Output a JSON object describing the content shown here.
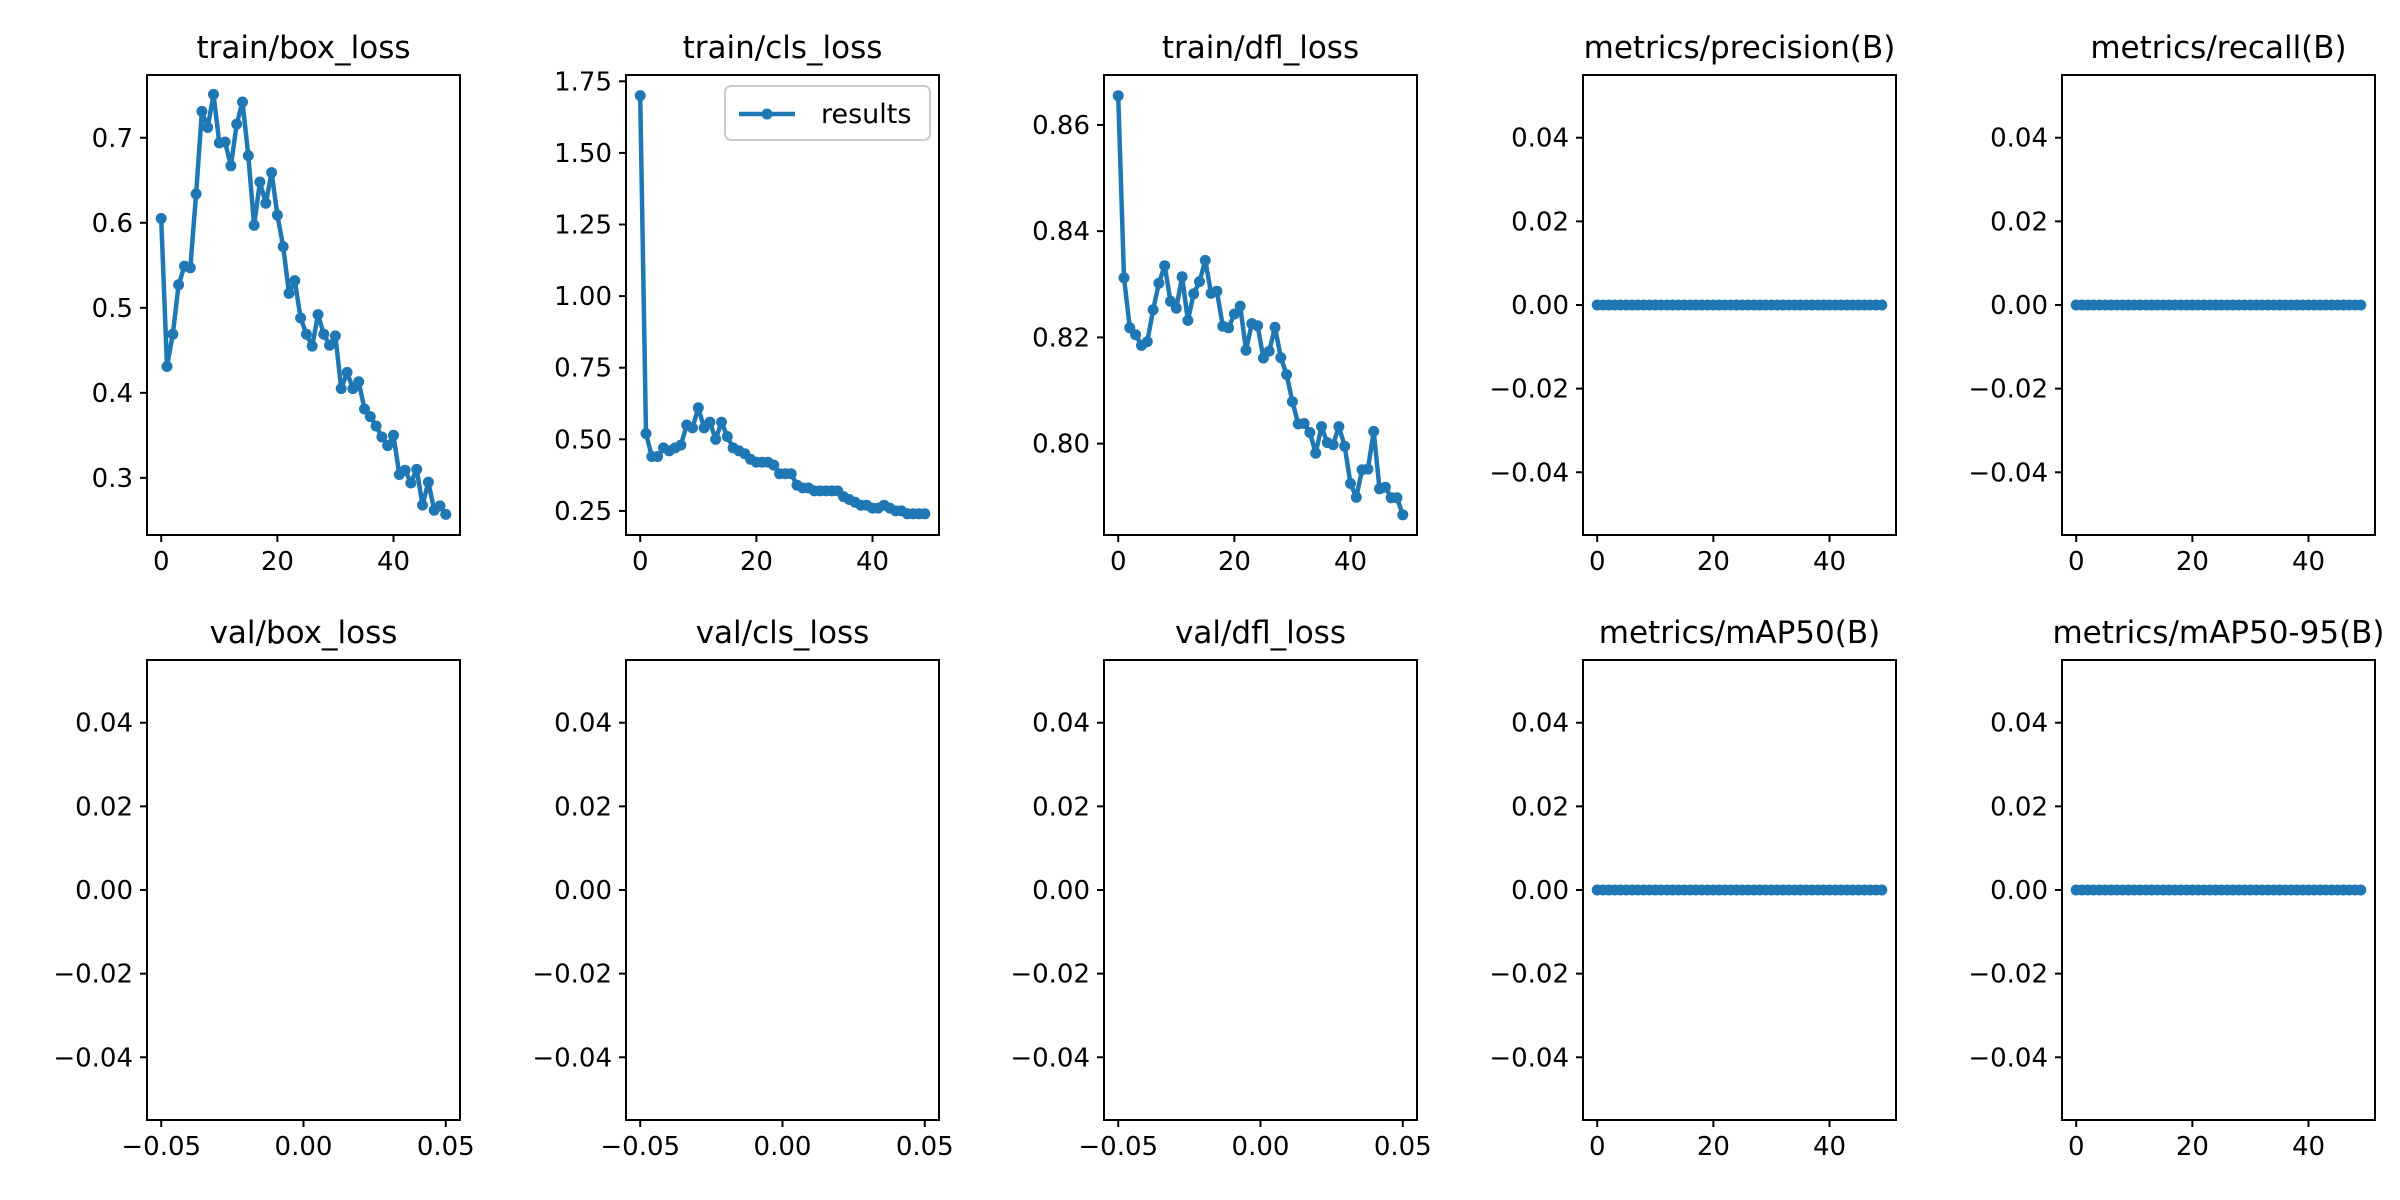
{
  "chart_data": [
    {
      "type": "line",
      "title": "train/box_loss",
      "xlabel": "",
      "ylabel": "",
      "xlim": [
        -2.45,
        51.45
      ],
      "ylim": [
        0.2328,
        0.7738
      ],
      "xticks": [
        0,
        20,
        40
      ],
      "xtick_labels": [
        "0",
        "20",
        "40"
      ],
      "yticks": [
        0.3,
        0.4,
        0.5,
        0.6,
        0.7
      ],
      "ytick_labels": [
        "0.3",
        "0.4",
        "0.5",
        "0.6",
        "0.7"
      ],
      "grid": false,
      "series": [
        {
          "color": "#1f77b4",
          "x": [
            0,
            1,
            2,
            3,
            4,
            5,
            6,
            7,
            8,
            9,
            10,
            11,
            12,
            13,
            14,
            15,
            16,
            17,
            18,
            19,
            20,
            21,
            22,
            23,
            24,
            25,
            26,
            27,
            28,
            29,
            30,
            31,
            32,
            33,
            34,
            35,
            36,
            37,
            38,
            39,
            40,
            41,
            42,
            43,
            44,
            45,
            46,
            47,
            48,
            49
          ],
          "y": [
            0.605,
            0.431,
            0.469,
            0.527,
            0.549,
            0.547,
            0.634,
            0.731,
            0.712,
            0.751,
            0.694,
            0.695,
            0.667,
            0.716,
            0.742,
            0.679,
            0.597,
            0.648,
            0.623,
            0.659,
            0.609,
            0.572,
            0.517,
            0.532,
            0.488,
            0.469,
            0.455,
            0.492,
            0.469,
            0.456,
            0.467,
            0.405,
            0.424,
            0.405,
            0.413,
            0.381,
            0.372,
            0.361,
            0.348,
            0.338,
            0.35,
            0.304,
            0.309,
            0.294,
            0.31,
            0.268,
            0.295,
            0.262,
            0.267,
            0.257
          ]
        }
      ]
    },
    {
      "type": "line",
      "title": "train/cls_loss",
      "xlabel": "",
      "ylabel": "",
      "xlim": [
        -2.45,
        51.45
      ],
      "ylim": [
        0.166,
        1.772
      ],
      "xticks": [
        0,
        20,
        40
      ],
      "xtick_labels": [
        "0",
        "20",
        "40"
      ],
      "yticks": [
        0.25,
        0.5,
        0.75,
        1.0,
        1.25,
        1.5,
        1.75
      ],
      "ytick_labels": [
        "0.25",
        "0.50",
        "0.75",
        "1.00",
        "1.25",
        "1.50",
        "1.75"
      ],
      "grid": false,
      "legend": {
        "position": "upper-right",
        "entries": [
          "results"
        ]
      },
      "series": [
        {
          "name": "results",
          "color": "#1f77b4",
          "x": [
            0,
            1,
            2,
            3,
            4,
            5,
            6,
            7,
            8,
            9,
            10,
            11,
            12,
            13,
            14,
            15,
            16,
            17,
            18,
            19,
            20,
            21,
            22,
            23,
            24,
            25,
            26,
            27,
            28,
            29,
            30,
            31,
            32,
            33,
            34,
            35,
            36,
            37,
            38,
            39,
            40,
            41,
            42,
            43,
            44,
            45,
            46,
            47,
            48,
            49
          ],
          "y": [
            1.7,
            0.52,
            0.44,
            0.44,
            0.47,
            0.46,
            0.47,
            0.48,
            0.55,
            0.54,
            0.61,
            0.54,
            0.56,
            0.5,
            0.56,
            0.51,
            0.47,
            0.46,
            0.45,
            0.43,
            0.42,
            0.42,
            0.42,
            0.41,
            0.38,
            0.38,
            0.38,
            0.34,
            0.33,
            0.33,
            0.32,
            0.32,
            0.32,
            0.32,
            0.32,
            0.3,
            0.29,
            0.28,
            0.27,
            0.27,
            0.26,
            0.26,
            0.27,
            0.26,
            0.25,
            0.25,
            0.24,
            0.24,
            0.24,
            0.24
          ]
        }
      ]
    },
    {
      "type": "line",
      "title": "train/dfl_loss",
      "xlabel": "",
      "ylabel": "",
      "xlim": [
        -2.45,
        51.45
      ],
      "ylim": [
        0.7828,
        0.8694
      ],
      "xticks": [
        0,
        20,
        40
      ],
      "xtick_labels": [
        "0",
        "20",
        "40"
      ],
      "yticks": [
        0.8,
        0.82,
        0.84,
        0.86
      ],
      "ytick_labels": [
        "0.80",
        "0.82",
        "0.84",
        "0.86"
      ],
      "grid": false,
      "series": [
        {
          "color": "#1f77b4",
          "x": [
            0,
            1,
            2,
            3,
            4,
            5,
            6,
            7,
            8,
            9,
            10,
            11,
            12,
            13,
            14,
            15,
            16,
            17,
            18,
            19,
            20,
            21,
            22,
            23,
            24,
            25,
            26,
            27,
            28,
            29,
            30,
            31,
            32,
            33,
            34,
            35,
            36,
            37,
            38,
            39,
            40,
            41,
            42,
            43,
            44,
            45,
            46,
            47,
            48,
            49
          ],
          "y": [
            0.8655,
            0.8312,
            0.8218,
            0.8205,
            0.8185,
            0.8192,
            0.8252,
            0.8302,
            0.8335,
            0.8268,
            0.8255,
            0.8314,
            0.8232,
            0.8282,
            0.8305,
            0.8345,
            0.8283,
            0.8287,
            0.8221,
            0.8218,
            0.8244,
            0.8259,
            0.8176,
            0.8226,
            0.8222,
            0.8161,
            0.8174,
            0.8219,
            0.8162,
            0.813,
            0.8079,
            0.8037,
            0.8038,
            0.8021,
            0.7982,
            0.8032,
            0.8002,
            0.7998,
            0.8032,
            0.7995,
            0.7925,
            0.7899,
            0.7951,
            0.7952,
            0.8023,
            0.7915,
            0.7918,
            0.7898,
            0.7898,
            0.7866
          ]
        }
      ]
    },
    {
      "type": "line",
      "title": "metrics/precision(B)",
      "xlabel": "",
      "ylabel": "",
      "xlim": [
        -2.45,
        51.45
      ],
      "ylim": [
        -0.055,
        0.055
      ],
      "xticks": [
        0,
        20,
        40
      ],
      "xtick_labels": [
        "0",
        "20",
        "40"
      ],
      "yticks": [
        -0.04,
        -0.02,
        0.0,
        0.02,
        0.04
      ],
      "ytick_labels": [
        "−0.04",
        "−0.02",
        "0.00",
        "0.02",
        "0.04"
      ],
      "grid": false,
      "series": [
        {
          "color": "#1f77b4",
          "x": [
            0,
            1,
            2,
            3,
            4,
            5,
            6,
            7,
            8,
            9,
            10,
            11,
            12,
            13,
            14,
            15,
            16,
            17,
            18,
            19,
            20,
            21,
            22,
            23,
            24,
            25,
            26,
            27,
            28,
            29,
            30,
            31,
            32,
            33,
            34,
            35,
            36,
            37,
            38,
            39,
            40,
            41,
            42,
            43,
            44,
            45,
            46,
            47,
            48,
            49
          ],
          "y": [
            0,
            0,
            0,
            0,
            0,
            0,
            0,
            0,
            0,
            0,
            0,
            0,
            0,
            0,
            0,
            0,
            0,
            0,
            0,
            0,
            0,
            0,
            0,
            0,
            0,
            0,
            0,
            0,
            0,
            0,
            0,
            0,
            0,
            0,
            0,
            0,
            0,
            0,
            0,
            0,
            0,
            0,
            0,
            0,
            0,
            0,
            0,
            0,
            0,
            0
          ]
        }
      ]
    },
    {
      "type": "line",
      "title": "metrics/recall(B)",
      "xlabel": "",
      "ylabel": "",
      "xlim": [
        -2.45,
        51.45
      ],
      "ylim": [
        -0.055,
        0.055
      ],
      "xticks": [
        0,
        20,
        40
      ],
      "xtick_labels": [
        "0",
        "20",
        "40"
      ],
      "yticks": [
        -0.04,
        -0.02,
        0.0,
        0.02,
        0.04
      ],
      "ytick_labels": [
        "−0.04",
        "−0.02",
        "0.00",
        "0.02",
        "0.04"
      ],
      "grid": false,
      "series": [
        {
          "color": "#1f77b4",
          "x": [
            0,
            1,
            2,
            3,
            4,
            5,
            6,
            7,
            8,
            9,
            10,
            11,
            12,
            13,
            14,
            15,
            16,
            17,
            18,
            19,
            20,
            21,
            22,
            23,
            24,
            25,
            26,
            27,
            28,
            29,
            30,
            31,
            32,
            33,
            34,
            35,
            36,
            37,
            38,
            39,
            40,
            41,
            42,
            43,
            44,
            45,
            46,
            47,
            48,
            49
          ],
          "y": [
            0,
            0,
            0,
            0,
            0,
            0,
            0,
            0,
            0,
            0,
            0,
            0,
            0,
            0,
            0,
            0,
            0,
            0,
            0,
            0,
            0,
            0,
            0,
            0,
            0,
            0,
            0,
            0,
            0,
            0,
            0,
            0,
            0,
            0,
            0,
            0,
            0,
            0,
            0,
            0,
            0,
            0,
            0,
            0,
            0,
            0,
            0,
            0,
            0,
            0
          ]
        }
      ]
    },
    {
      "type": "line",
      "title": "val/box_loss",
      "xlabel": "",
      "ylabel": "",
      "xlim": [
        -0.055,
        0.055
      ],
      "ylim": [
        -0.055,
        0.055
      ],
      "xticks": [
        -0.05,
        0.0,
        0.05
      ],
      "xtick_labels": [
        "−0.05",
        "0.00",
        "0.05"
      ],
      "yticks": [
        -0.04,
        -0.02,
        0.0,
        0.02,
        0.04
      ],
      "ytick_labels": [
        "−0.04",
        "−0.02",
        "0.00",
        "0.02",
        "0.04"
      ],
      "grid": false,
      "series": []
    },
    {
      "type": "line",
      "title": "val/cls_loss",
      "xlabel": "",
      "ylabel": "",
      "xlim": [
        -0.055,
        0.055
      ],
      "ylim": [
        -0.055,
        0.055
      ],
      "xticks": [
        -0.05,
        0.0,
        0.05
      ],
      "xtick_labels": [
        "−0.05",
        "0.00",
        "0.05"
      ],
      "yticks": [
        -0.04,
        -0.02,
        0.0,
        0.02,
        0.04
      ],
      "ytick_labels": [
        "−0.04",
        "−0.02",
        "0.00",
        "0.02",
        "0.04"
      ],
      "grid": false,
      "series": []
    },
    {
      "type": "line",
      "title": "val/dfl_loss",
      "xlabel": "",
      "ylabel": "",
      "xlim": [
        -0.055,
        0.055
      ],
      "ylim": [
        -0.055,
        0.055
      ],
      "xticks": [
        -0.05,
        0.0,
        0.05
      ],
      "xtick_labels": [
        "−0.05",
        "0.00",
        "0.05"
      ],
      "yticks": [
        -0.04,
        -0.02,
        0.0,
        0.02,
        0.04
      ],
      "ytick_labels": [
        "−0.04",
        "−0.02",
        "0.00",
        "0.02",
        "0.04"
      ],
      "grid": false,
      "series": []
    },
    {
      "type": "line",
      "title": "metrics/mAP50(B)",
      "xlabel": "",
      "ylabel": "",
      "xlim": [
        -2.45,
        51.45
      ],
      "ylim": [
        -0.055,
        0.055
      ],
      "xticks": [
        0,
        20,
        40
      ],
      "xtick_labels": [
        "0",
        "20",
        "40"
      ],
      "yticks": [
        -0.04,
        -0.02,
        0.0,
        0.02,
        0.04
      ],
      "ytick_labels": [
        "−0.04",
        "−0.02",
        "0.00",
        "0.02",
        "0.04"
      ],
      "grid": false,
      "series": [
        {
          "color": "#1f77b4",
          "x": [
            0,
            1,
            2,
            3,
            4,
            5,
            6,
            7,
            8,
            9,
            10,
            11,
            12,
            13,
            14,
            15,
            16,
            17,
            18,
            19,
            20,
            21,
            22,
            23,
            24,
            25,
            26,
            27,
            28,
            29,
            30,
            31,
            32,
            33,
            34,
            35,
            36,
            37,
            38,
            39,
            40,
            41,
            42,
            43,
            44,
            45,
            46,
            47,
            48,
            49
          ],
          "y": [
            0,
            0,
            0,
            0,
            0,
            0,
            0,
            0,
            0,
            0,
            0,
            0,
            0,
            0,
            0,
            0,
            0,
            0,
            0,
            0,
            0,
            0,
            0,
            0,
            0,
            0,
            0,
            0,
            0,
            0,
            0,
            0,
            0,
            0,
            0,
            0,
            0,
            0,
            0,
            0,
            0,
            0,
            0,
            0,
            0,
            0,
            0,
            0,
            0,
            0
          ]
        }
      ]
    },
    {
      "type": "line",
      "title": "metrics/mAP50-95(B)",
      "xlabel": "",
      "ylabel": "",
      "xlim": [
        -2.45,
        51.45
      ],
      "ylim": [
        -0.055,
        0.055
      ],
      "xticks": [
        0,
        20,
        40
      ],
      "xtick_labels": [
        "0",
        "20",
        "40"
      ],
      "yticks": [
        -0.04,
        -0.02,
        0.0,
        0.02,
        0.04
      ],
      "ytick_labels": [
        "−0.04",
        "−0.02",
        "0.00",
        "0.02",
        "0.04"
      ],
      "grid": false,
      "series": [
        {
          "color": "#1f77b4",
          "x": [
            0,
            1,
            2,
            3,
            4,
            5,
            6,
            7,
            8,
            9,
            10,
            11,
            12,
            13,
            14,
            15,
            16,
            17,
            18,
            19,
            20,
            21,
            22,
            23,
            24,
            25,
            26,
            27,
            28,
            29,
            30,
            31,
            32,
            33,
            34,
            35,
            36,
            37,
            38,
            39,
            40,
            41,
            42,
            43,
            44,
            45,
            46,
            47,
            48,
            49
          ],
          "y": [
            0,
            0,
            0,
            0,
            0,
            0,
            0,
            0,
            0,
            0,
            0,
            0,
            0,
            0,
            0,
            0,
            0,
            0,
            0,
            0,
            0,
            0,
            0,
            0,
            0,
            0,
            0,
            0,
            0,
            0,
            0,
            0,
            0,
            0,
            0,
            0,
            0,
            0,
            0,
            0,
            0,
            0,
            0,
            0,
            0,
            0,
            0,
            0,
            0,
            0
          ]
        }
      ]
    }
  ]
}
